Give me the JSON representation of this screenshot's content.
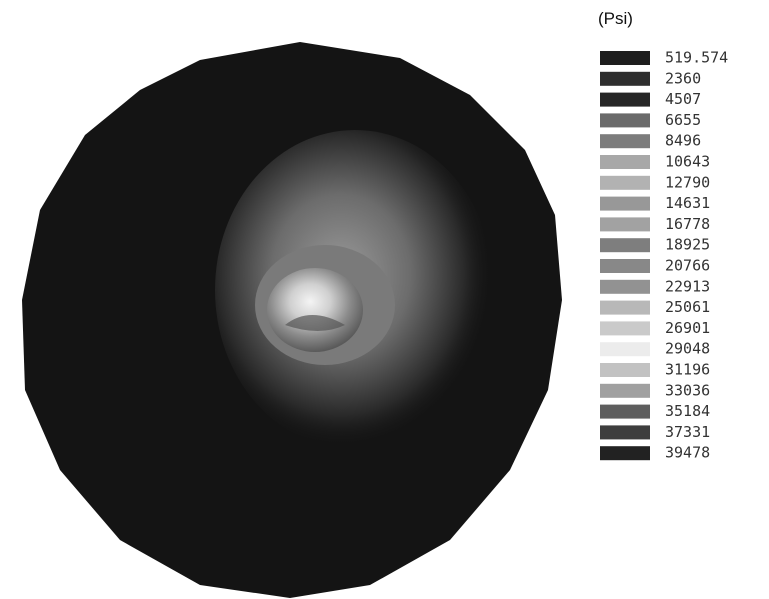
{
  "legend": {
    "title": "(Psi)",
    "items": [
      {
        "label": "519.574",
        "color": "#1e1e1e"
      },
      {
        "label": "2360",
        "color": "#2e2e2e"
      },
      {
        "label": "4507",
        "color": "#262626"
      },
      {
        "label": "6655",
        "color": "#6a6a6a"
      },
      {
        "label": "8496",
        "color": "#7c7c7c"
      },
      {
        "label": "10643",
        "color": "#a8a8a8"
      },
      {
        "label": "12790",
        "color": "#b2b2b2"
      },
      {
        "label": "14631",
        "color": "#989898"
      },
      {
        "label": "16778",
        "color": "#a2a2a2"
      },
      {
        "label": "18925",
        "color": "#7e7e7e"
      },
      {
        "label": "20766",
        "color": "#888888"
      },
      {
        "label": "22913",
        "color": "#929292"
      },
      {
        "label": "25061",
        "color": "#b8b8b8"
      },
      {
        "label": "26901",
        "color": "#cacaca"
      },
      {
        "label": "29048",
        "color": "#ececec"
      },
      {
        "label": "31196",
        "color": "#c2c2c2"
      },
      {
        "label": "33036",
        "color": "#a0a0a0"
      },
      {
        "label": "35184",
        "color": "#5e5e5e"
      },
      {
        "label": "37331",
        "color": "#3e3e3e"
      },
      {
        "label": "39478",
        "color": "#222222"
      }
    ]
  }
}
